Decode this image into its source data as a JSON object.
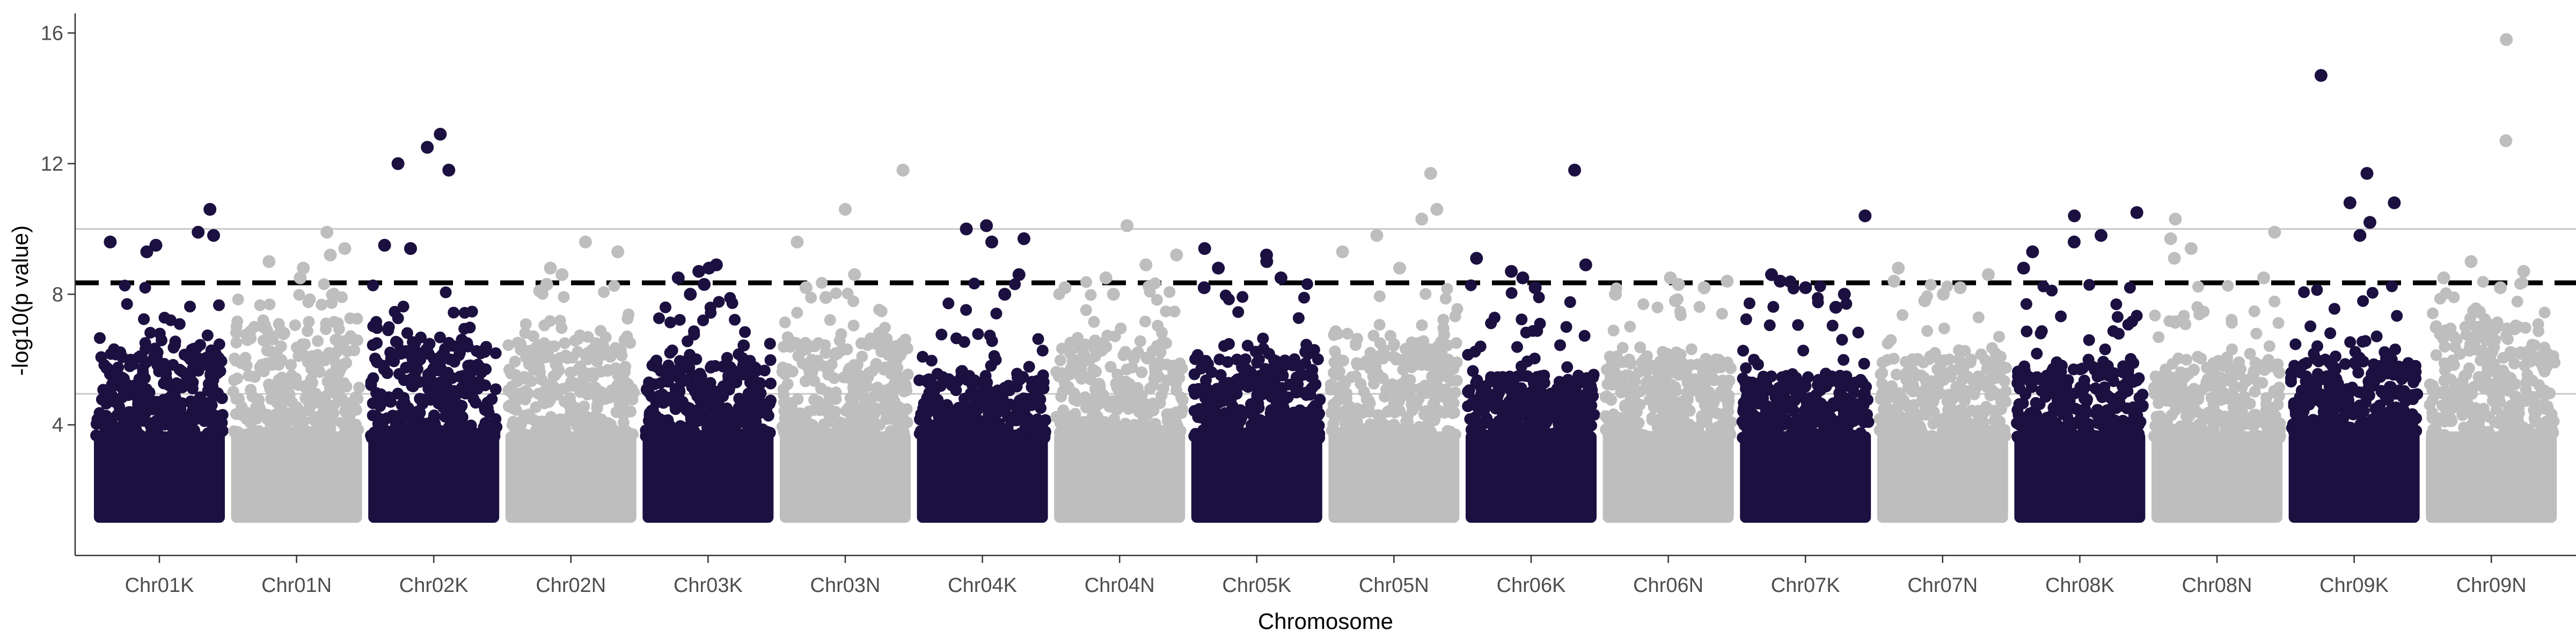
{
  "chart_data": {
    "type": "scatter",
    "subtype": "manhattan",
    "title": "",
    "xlabel": "Chromosome",
    "ylabel": "-log10(p value)",
    "ylim": [
      0,
      16.6
    ],
    "y_ticks": [
      4,
      8,
      12,
      16
    ],
    "grid": false,
    "legend": "none",
    "colors": {
      "dark": "#1b1040",
      "light": "#bebebe",
      "threshold": "#000000",
      "guide": "#c8c8c8"
    },
    "reference_lines": [
      {
        "y": 8.35,
        "style": "dashed"
      },
      {
        "y": 10.0,
        "style": "solid"
      },
      {
        "y": 4.95,
        "style": "solid"
      }
    ],
    "chromosomes": [
      {
        "name": "Chr01K",
        "color": "dark",
        "max_p": 10.6,
        "upper_band": 6.3,
        "top_hits": [
          10.6,
          9.8,
          9.9,
          9.5,
          9.6,
          9.3
        ]
      },
      {
        "name": "Chr01N",
        "color": "light",
        "max_p": 10.0,
        "upper_band": 7.0,
        "top_hits": [
          9.9,
          9.4,
          9.2,
          9.0,
          8.8,
          8.5
        ]
      },
      {
        "name": "Chr02K",
        "color": "dark",
        "max_p": 12.9,
        "upper_band": 6.5,
        "top_hits": [
          12.9,
          12.5,
          12.0,
          11.8,
          9.5,
          9.4
        ]
      },
      {
        "name": "Chr02N",
        "color": "light",
        "max_p": 9.6,
        "upper_band": 6.5,
        "top_hits": [
          9.6,
          9.3,
          8.8,
          8.6,
          8.3,
          8.1
        ]
      },
      {
        "name": "Chr03K",
        "color": "dark",
        "max_p": 8.9,
        "upper_band": 6.0,
        "top_hits": [
          8.9,
          8.8,
          8.7,
          8.5,
          8.3,
          8.0
        ]
      },
      {
        "name": "Chr03N",
        "color": "light",
        "max_p": 11.8,
        "upper_band": 6.5,
        "top_hits": [
          11.8,
          10.6,
          9.6,
          8.6,
          8.2,
          7.9
        ]
      },
      {
        "name": "Chr04K",
        "color": "dark",
        "max_p": 10.1,
        "upper_band": 5.5,
        "top_hits": [
          10.1,
          10.0,
          9.7,
          9.6,
          8.6,
          8.0
        ]
      },
      {
        "name": "Chr04N",
        "color": "light",
        "max_p": 10.1,
        "upper_band": 6.5,
        "top_hits": [
          10.1,
          9.2,
          8.9,
          8.5,
          8.2,
          8.0
        ]
      },
      {
        "name": "Chr05K",
        "color": "dark",
        "max_p": 9.4,
        "upper_band": 6.0,
        "top_hits": [
          9.4,
          9.2,
          9.0,
          8.8,
          8.5,
          8.2
        ]
      },
      {
        "name": "Chr05N",
        "color": "light",
        "max_p": 11.7,
        "upper_band": 6.5,
        "top_hits": [
          11.7,
          10.6,
          10.3,
          9.8,
          9.3,
          8.8
        ]
      },
      {
        "name": "Chr06K",
        "color": "dark",
        "max_p": 11.8,
        "upper_band": 5.5,
        "top_hits": [
          11.8,
          9.1,
          8.9,
          8.7,
          8.5,
          8.2
        ]
      },
      {
        "name": "Chr06N",
        "color": "light",
        "max_p": 8.5,
        "upper_band": 6.0,
        "top_hits": [
          8.5,
          8.4,
          8.3,
          8.2,
          8.0,
          7.8
        ]
      },
      {
        "name": "Chr07K",
        "color": "dark",
        "max_p": 10.4,
        "upper_band": 5.5,
        "top_hits": [
          10.4,
          8.6,
          8.4,
          8.2,
          8.0,
          7.6
        ]
      },
      {
        "name": "Chr07N",
        "color": "light",
        "max_p": 8.8,
        "upper_band": 6.0,
        "top_hits": [
          8.8,
          8.6,
          8.4,
          8.2,
          8.0,
          7.8
        ]
      },
      {
        "name": "Chr08K",
        "color": "dark",
        "max_p": 10.5,
        "upper_band": 5.8,
        "top_hits": [
          10.5,
          10.4,
          9.8,
          9.6,
          9.3,
          8.8
        ]
      },
      {
        "name": "Chr08N",
        "color": "light",
        "max_p": 10.3,
        "upper_band": 6.0,
        "top_hits": [
          10.3,
          9.9,
          9.7,
          9.4,
          9.1,
          8.5
        ]
      },
      {
        "name": "Chr09K",
        "color": "dark",
        "max_p": 14.7,
        "upper_band": 6.0,
        "top_hits": [
          14.7,
          11.7,
          10.8,
          10.8,
          10.2,
          9.8
        ]
      },
      {
        "name": "Chr09N",
        "color": "light",
        "max_p": 15.8,
        "upper_band": 7.0,
        "top_hits": [
          15.8,
          12.7,
          9.0,
          8.7,
          8.5,
          8.2
        ]
      }
    ]
  }
}
